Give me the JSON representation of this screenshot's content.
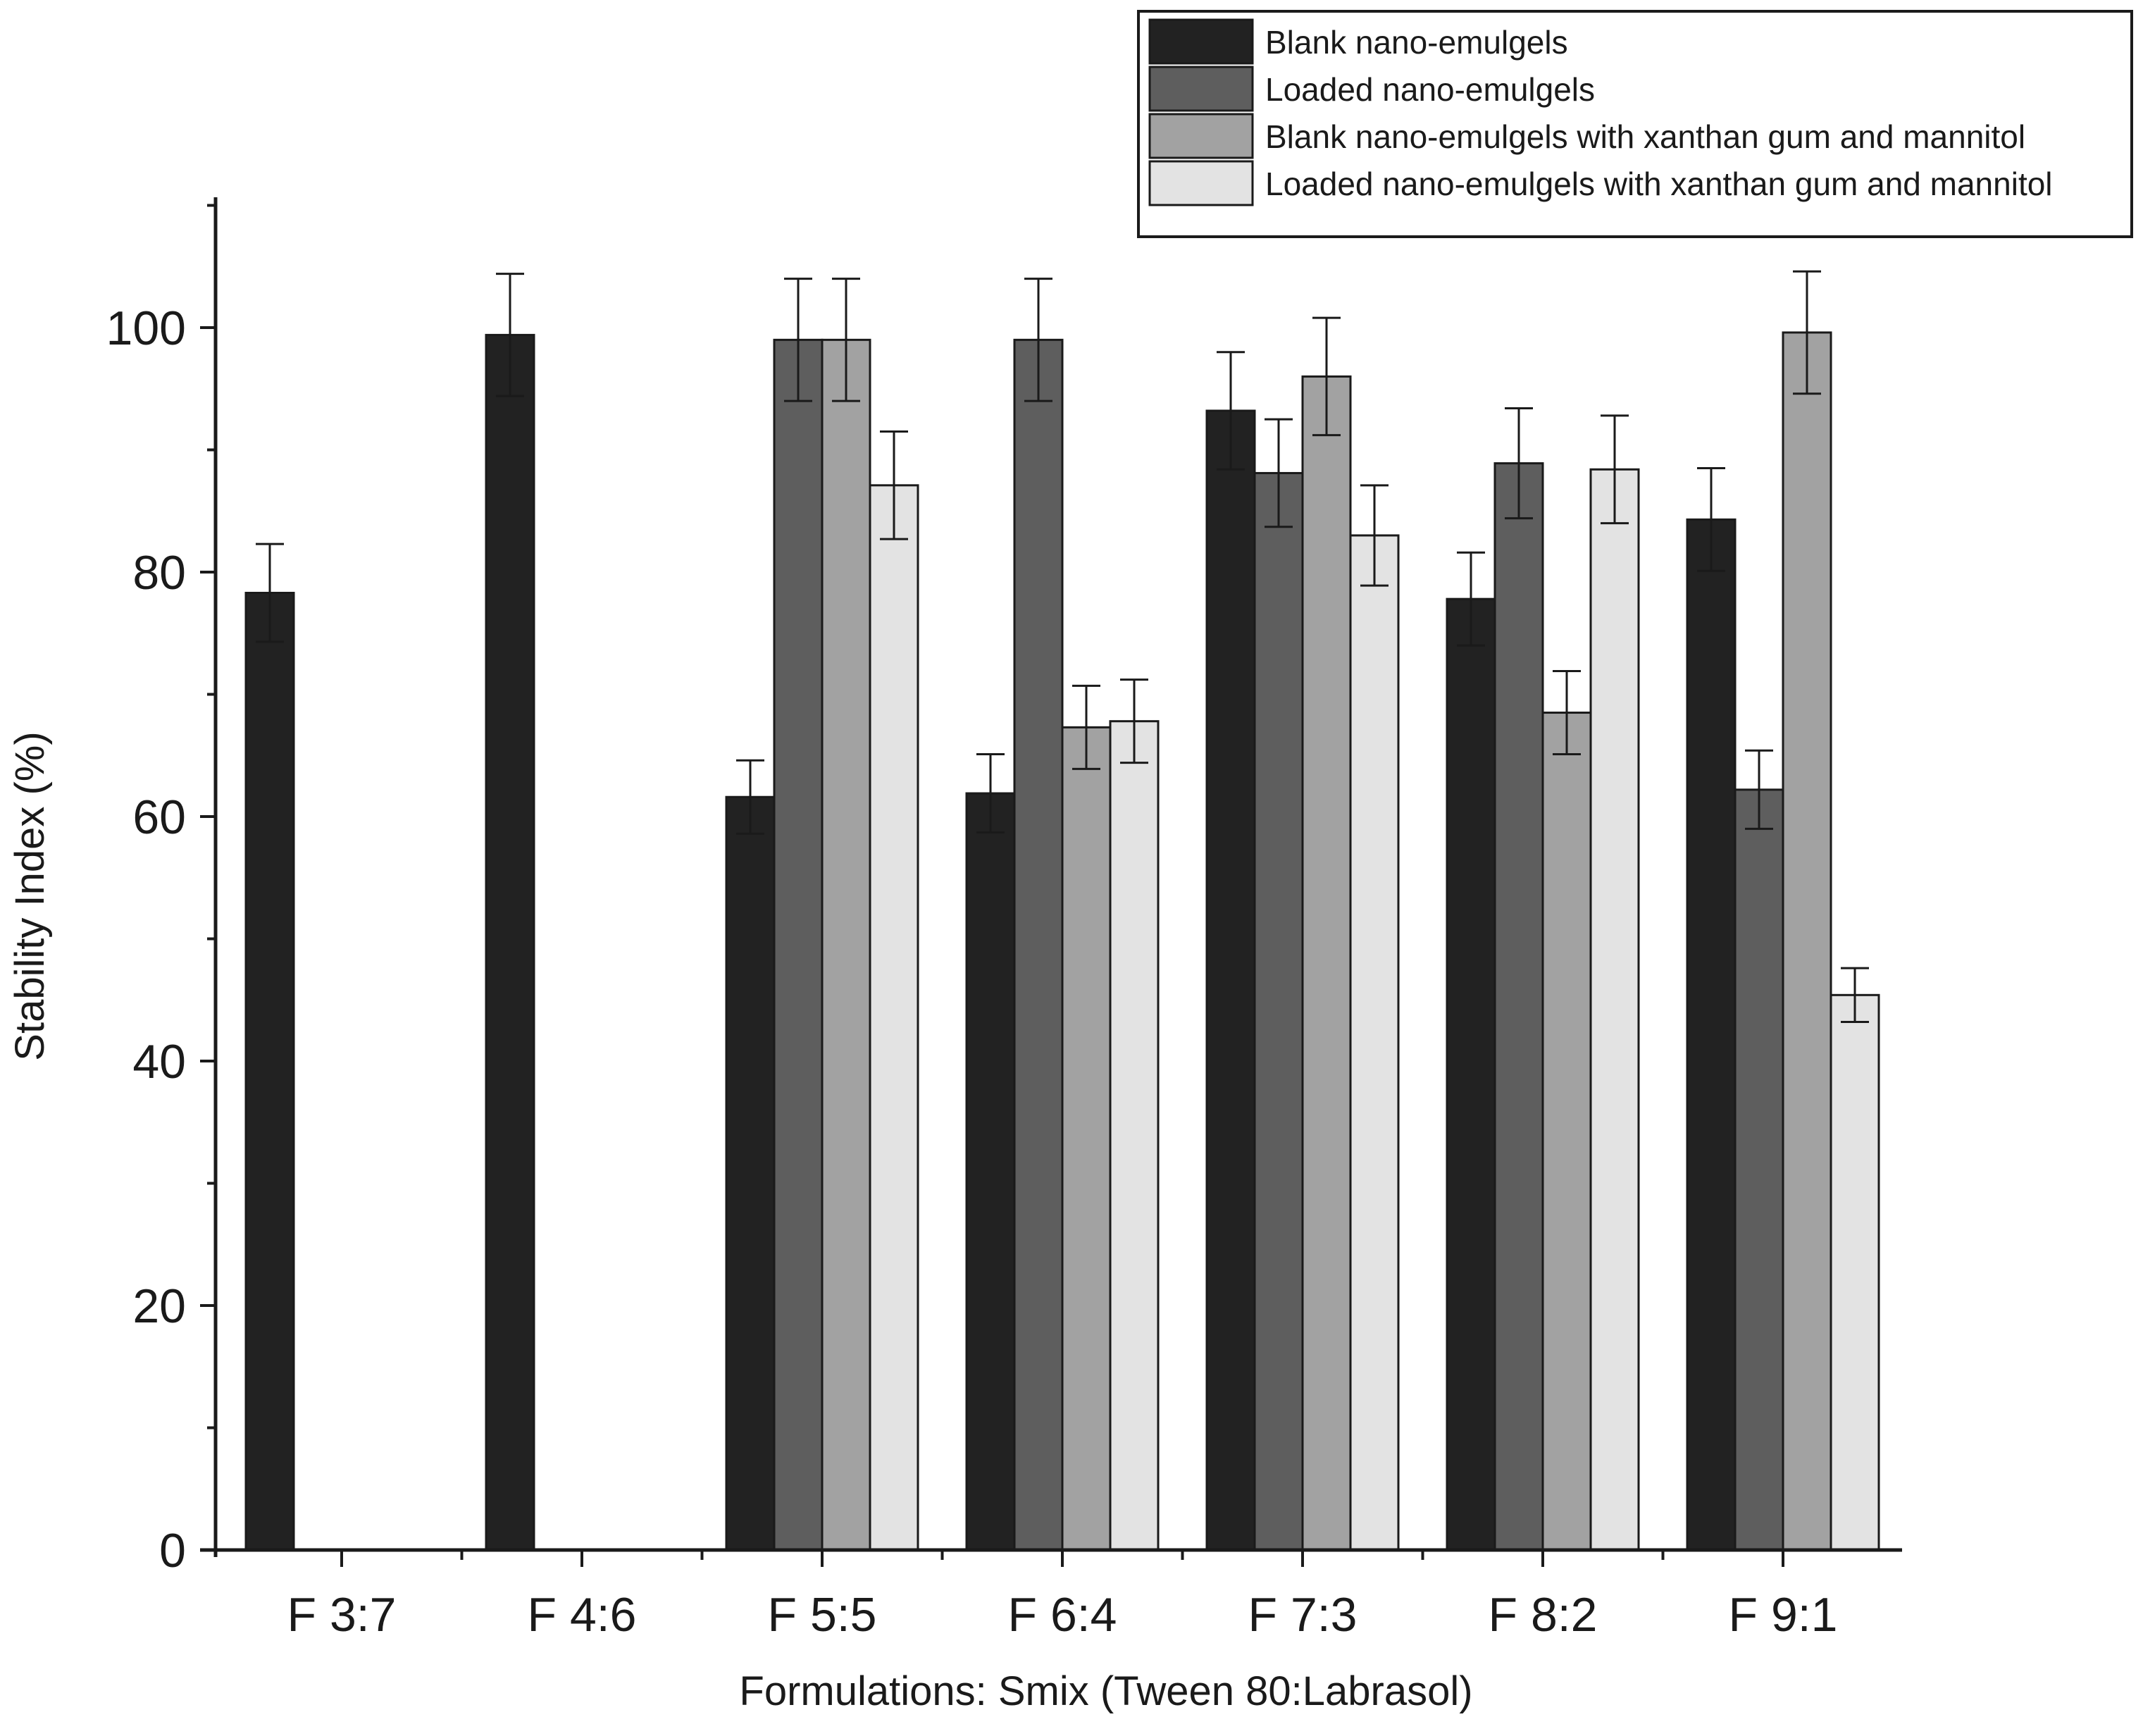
{
  "chart_data": {
    "type": "bar",
    "title": "",
    "xlabel": "Formulations: Smix (Tween 80:Labrasol)",
    "ylabel": "Stability Index (%)",
    "ylim": [
      0,
      110
    ],
    "yticks": [
      0,
      20,
      40,
      60,
      80,
      100
    ],
    "y_minor_step": 10,
    "grid": false,
    "legend_position": "top-right",
    "categories": [
      "F 3:7",
      "F 4:6",
      "F 5:5",
      "F 6:4",
      "F 7:3",
      "F 8:2",
      "F 9:1"
    ],
    "series": [
      {
        "name": "Blank nano-emulgels",
        "color": "#222222",
        "values": [
          78.3,
          99.4,
          61.6,
          61.9,
          93.2,
          77.8,
          84.3
        ],
        "errors": [
          4.0,
          5.0,
          3.0,
          3.2,
          4.8,
          3.8,
          4.2
        ]
      },
      {
        "name": "Loaded nano-emulgels",
        "color": "#5e5e5e",
        "values": [
          0,
          0,
          99.0,
          99.0,
          88.1,
          88.9,
          62.2
        ],
        "errors": [
          0,
          0,
          5.0,
          5.0,
          4.4,
          4.5,
          3.2
        ]
      },
      {
        "name": "Blank nano-emulgels with xanthan gum and mannitol",
        "color": "#a2a2a2",
        "values": [
          0,
          0,
          99.0,
          67.3,
          96.0,
          68.5,
          99.6
        ],
        "errors": [
          0,
          0,
          5.0,
          3.4,
          4.8,
          3.4,
          5.0
        ]
      },
      {
        "name": "Loaded nano-emulgels with xanthan gum and mannitol",
        "color": "#e3e3e3",
        "values": [
          0,
          0,
          87.1,
          67.8,
          83.0,
          88.4,
          45.4
        ],
        "errors": [
          0,
          0,
          4.4,
          3.4,
          4.1,
          4.4,
          2.2
        ]
      }
    ]
  }
}
